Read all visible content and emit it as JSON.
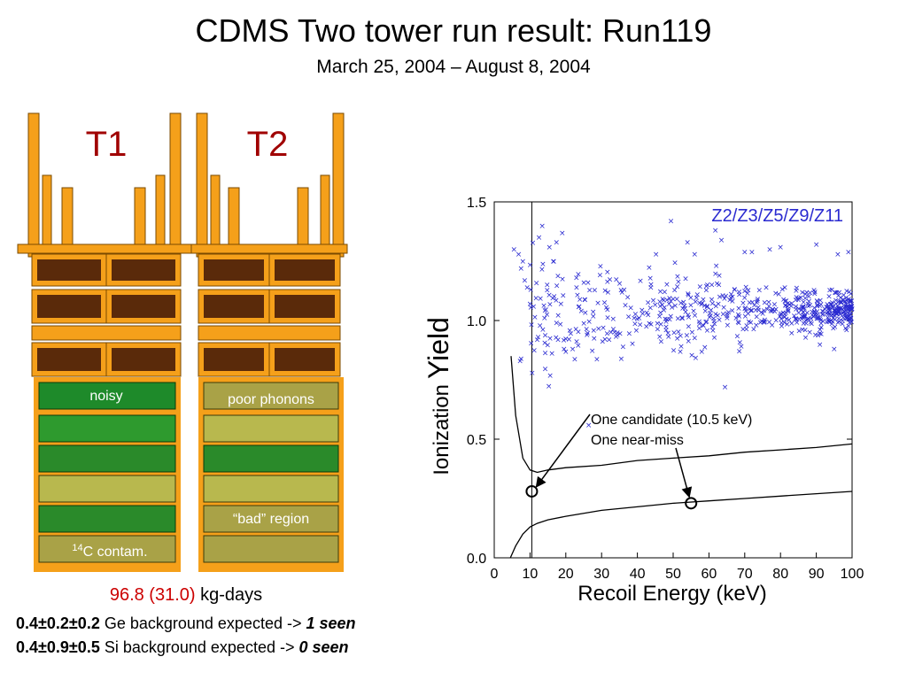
{
  "slide": {
    "title": "CDMS Two tower run result: Run119",
    "subtitle": "March 25, 2004 – August 8, 2004"
  },
  "towers": {
    "t1_label": "T1",
    "t2_label": "T2",
    "t1_notes": {
      "noisy": "noisy",
      "contam_sup": "14",
      "contam_text": "C contam."
    },
    "t2_notes": {
      "poor_phonons": "poor phonons",
      "bad_region": "“bad” region"
    },
    "colors": {
      "label_red": "#a00000",
      "frame_orange": "#f5a01a",
      "detector_green": "#1e8a2a",
      "detector_olive": "#a9a247"
    }
  },
  "summary": {
    "exposure_value": "96.8 (31.0)",
    "exposure_unit": " kg-days",
    "ge_line": {
      "numbers": "0.4±0.2±0.2",
      "text": " Ge background expected -> ",
      "seen": "1 seen"
    },
    "si_line": {
      "numbers": "0.4±0.9±0.5",
      "text": " Si background expected -> ",
      "seen": "0 seen"
    }
  },
  "chart_data": {
    "type": "scatter",
    "xlabel": "Recoil Energy (keV)",
    "ylabel_prefix": "Ionization",
    "ylabel_main": "Yield",
    "xlim": [
      0,
      100
    ],
    "ylim": [
      0,
      1.5
    ],
    "x_ticks": [
      0,
      10,
      20,
      30,
      40,
      50,
      60,
      70,
      80,
      90,
      100
    ],
    "y_ticks": [
      0.0,
      0.5,
      1.0,
      1.5
    ],
    "y_tick_labels": [
      "0.0",
      "0.5",
      "1.0",
      "1.5"
    ],
    "legend_text": "Z2/Z3/Z5/Z9/Z11",
    "series_color": "#2a2ad0",
    "threshold_keV": 10.5,
    "annotation": {
      "line1": "One candidate (10.5 keV)",
      "line2": "One near-miss"
    },
    "candidate_event": {
      "x": 10.5,
      "y": 0.28
    },
    "near_miss_event": {
      "x": 55,
      "y": 0.23
    },
    "upper_band_curve": [
      [
        4.7,
        0.85
      ],
      [
        6,
        0.6
      ],
      [
        8,
        0.42
      ],
      [
        10,
        0.37
      ],
      [
        12,
        0.36
      ],
      [
        15,
        0.37
      ],
      [
        20,
        0.38
      ],
      [
        30,
        0.39
      ],
      [
        40,
        0.41
      ],
      [
        50,
        0.42
      ],
      [
        60,
        0.43
      ],
      [
        70,
        0.445
      ],
      [
        80,
        0.455
      ],
      [
        90,
        0.465
      ],
      [
        100,
        0.48
      ]
    ],
    "lower_band_curve": [
      [
        4.5,
        0.0
      ],
      [
        6,
        0.05
      ],
      [
        8,
        0.1
      ],
      [
        10,
        0.13
      ],
      [
        12,
        0.145
      ],
      [
        15,
        0.16
      ],
      [
        20,
        0.175
      ],
      [
        30,
        0.2
      ],
      [
        40,
        0.215
      ],
      [
        50,
        0.23
      ],
      [
        60,
        0.24
      ],
      [
        70,
        0.25
      ],
      [
        80,
        0.26
      ],
      [
        90,
        0.27
      ],
      [
        100,
        0.28
      ]
    ],
    "sparse_points": [
      [
        5.5,
        1.3
      ],
      [
        6.8,
        1.28
      ],
      [
        7.5,
        1.22
      ],
      [
        8,
        1.25
      ],
      [
        8.5,
        1.17
      ],
      [
        9.2,
        1.14
      ],
      [
        10.2,
        1.13
      ],
      [
        11,
        1.06
      ],
      [
        12,
        0.92
      ],
      [
        7.5,
        0.84
      ],
      [
        7.2,
        0.83
      ],
      [
        12.5,
        1.35
      ],
      [
        13.4,
        1.4
      ],
      [
        15.4,
        1.31
      ],
      [
        16.5,
        1.25
      ],
      [
        19,
        1.37
      ],
      [
        17.4,
        1.33
      ],
      [
        26.2,
        1.16
      ],
      [
        26.4,
        0.56
      ],
      [
        19.5,
        0.88
      ],
      [
        20,
        0.87
      ],
      [
        36,
        0.89
      ],
      [
        35.5,
        0.84
      ],
      [
        45.2,
        1.28
      ],
      [
        49.4,
        1.42
      ],
      [
        54,
        1.33
      ],
      [
        56,
        1.28
      ],
      [
        61.8,
        1.38
      ],
      [
        63.5,
        1.34
      ],
      [
        64.5,
        0.72
      ],
      [
        70,
        1.29
      ],
      [
        72,
        1.29
      ],
      [
        77,
        1.3
      ],
      [
        80,
        1.31
      ],
      [
        90,
        1.32
      ],
      [
        96,
        1.28
      ],
      [
        99,
        1.29
      ],
      [
        52,
        0.87
      ],
      [
        58,
        0.87
      ],
      [
        91,
        0.9
      ],
      [
        87,
        0.93
      ],
      [
        95,
        0.88
      ]
    ]
  }
}
